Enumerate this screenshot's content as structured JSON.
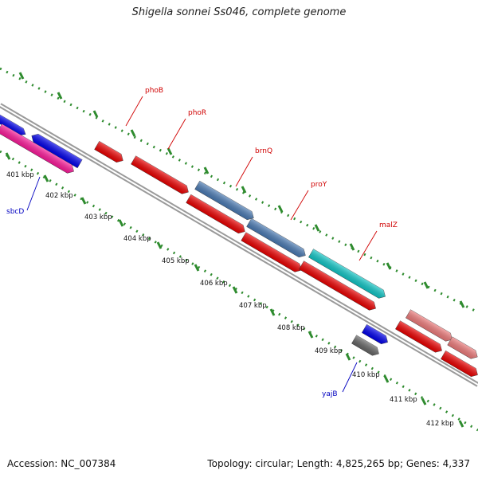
{
  "title": "Shigella sonnei Ss046, complete genome",
  "footer": {
    "accession": "Accession: NC_007384",
    "summary": "Topology: circular; Length: 4,825,265 bp; Genes: 4,337"
  },
  "colors": {
    "backbone": "#8a8a8a",
    "dots": "#2e8b2e",
    "label_red": "#d00000",
    "label_blue": "#0000c0"
  },
  "ticks": [
    "401 kbp",
    "402 kbp",
    "403 kbp",
    "404 kbp",
    "405 kbp",
    "406 kbp",
    "407 kbp",
    "408 kbp",
    "409 kbp",
    "410 kbp",
    "411 kbp",
    "412 kbp"
  ],
  "gene_labels": [
    {
      "text": "phoB",
      "color": "red"
    },
    {
      "text": "phoR",
      "color": "red"
    },
    {
      "text": "brnQ",
      "color": "red"
    },
    {
      "text": "proY",
      "color": "red"
    },
    {
      "text": "malZ",
      "color": "red"
    },
    {
      "text": "sbcD",
      "color": "blue"
    },
    {
      "text": "yajB",
      "color": "blue"
    }
  ],
  "features": [
    {
      "name": "feature-blue-top-left",
      "color": "#0000ee"
    },
    {
      "name": "feature-blue-second",
      "color": "#0000ee"
    },
    {
      "name": "feature-pink",
      "color": "#ff1a9c"
    },
    {
      "name": "feature-phoB",
      "color": "#ee0000"
    },
    {
      "name": "feature-phoR",
      "color": "#ee0000"
    },
    {
      "name": "feature-brnQ",
      "color": "#4a7bb5"
    },
    {
      "name": "feature-red-under-brnQ",
      "color": "#ee0000"
    },
    {
      "name": "feature-proY",
      "color": "#4a7bb5"
    },
    {
      "name": "feature-red-under-proY",
      "color": "#ee0000"
    },
    {
      "name": "feature-malZ",
      "color": "#10c8c8"
    },
    {
      "name": "feature-red-under-malZ",
      "color": "#ee0000"
    },
    {
      "name": "feature-salmon-1",
      "color": "#f07c7c"
    },
    {
      "name": "feature-salmon-2",
      "color": "#f07c7c"
    },
    {
      "name": "feature-red-right-1",
      "color": "#ee0000"
    },
    {
      "name": "feature-red-right-2",
      "color": "#ee0000"
    },
    {
      "name": "feature-blue-small",
      "color": "#0000ee"
    },
    {
      "name": "feature-gray-yajB",
      "color": "#666666"
    }
  ]
}
